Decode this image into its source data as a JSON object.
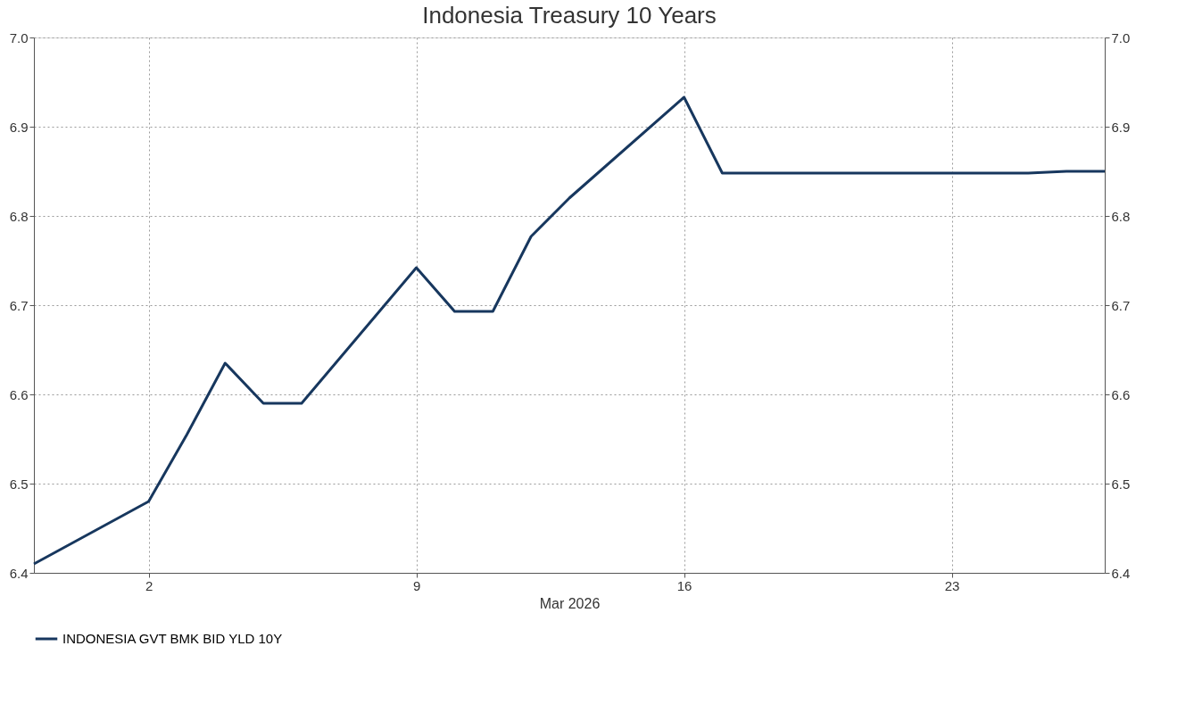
{
  "chart_data": {
    "type": "line",
    "title": "Indonesia Treasury 10 Years",
    "xlabel": "Mar 2026",
    "x": [
      "2026-02-27",
      "2026-03-02",
      "2026-03-03",
      "2026-03-04",
      "2026-03-05",
      "2026-03-06",
      "2026-03-09",
      "2026-03-10",
      "2026-03-11",
      "2026-03-12",
      "2026-03-13",
      "2026-03-16",
      "2026-03-17",
      "2026-03-18",
      "2026-03-19",
      "2026-03-20",
      "2026-03-23",
      "2026-03-24",
      "2026-03-25",
      "2026-03-26",
      "2026-03-27"
    ],
    "series": [
      {
        "name": "INDONESIA GVT BMK BID YLD 10Y",
        "color": "#17375e",
        "values": [
          6.41,
          6.48,
          6.555,
          6.635,
          6.59,
          6.59,
          6.742,
          6.693,
          6.693,
          6.777,
          6.82,
          6.933,
          6.848,
          6.848,
          6.848,
          6.848,
          6.848,
          6.848,
          6.848,
          6.85,
          6.85
        ]
      }
    ],
    "xlim": [
      "2026-02-27",
      "2026-03-27"
    ],
    "xticks": [
      {
        "value": "2026-03-02",
        "label": "2"
      },
      {
        "value": "2026-03-09",
        "label": "9"
      },
      {
        "value": "2026-03-16",
        "label": "16"
      },
      {
        "value": "2026-03-23",
        "label": "23"
      }
    ],
    "ylim": [
      6.4,
      7.0
    ],
    "yticks": [
      6.4,
      6.5,
      6.6,
      6.7,
      6.8,
      6.9,
      {
        "value": 7.0,
        "label": "7.0"
      }
    ],
    "y2lim": [
      6.4,
      7.0
    ],
    "y2ticks": [
      6.4,
      6.5,
      6.6,
      6.7,
      6.8,
      6.9,
      {
        "value": 7.0,
        "label": "7.0"
      }
    ],
    "grid": true,
    "legend": "bottom left",
    "line_style": "solid",
    "marker": "none"
  }
}
